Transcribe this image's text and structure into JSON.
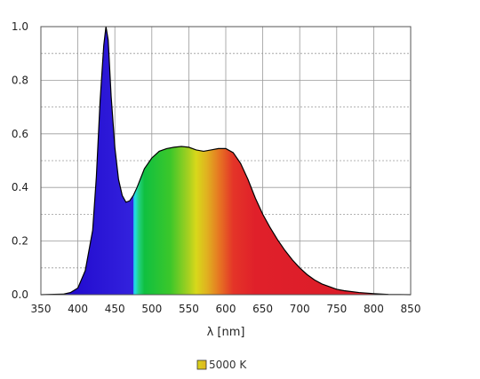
{
  "chart_data": {
    "type": "area",
    "xlabel": "λ [nm]",
    "ylabel": "",
    "xlim": [
      350,
      850
    ],
    "ylim": [
      0.0,
      1.0
    ],
    "x_ticks": [
      "350",
      "400",
      "450",
      "500",
      "550",
      "600",
      "650",
      "700",
      "750",
      "800",
      "850"
    ],
    "y_ticks": [
      "0.0",
      "0.2",
      "0.4",
      "0.6",
      "0.8",
      "1.0"
    ],
    "grid": true,
    "legend_position": "bottom-center",
    "series": [
      {
        "name": "5000 K",
        "x": [
          350,
          380,
          390,
          400,
          410,
          420,
          425,
          430,
          435,
          438,
          441,
          445,
          450,
          455,
          460,
          465,
          470,
          475,
          480,
          490,
          500,
          510,
          520,
          530,
          540,
          550,
          560,
          570,
          580,
          590,
          600,
          610,
          620,
          630,
          640,
          650,
          660,
          670,
          680,
          690,
          700,
          710,
          720,
          730,
          740,
          750,
          760,
          780,
          800,
          820,
          850
        ],
        "y": [
          0.0,
          0.002,
          0.008,
          0.025,
          0.09,
          0.24,
          0.44,
          0.72,
          0.93,
          1.0,
          0.95,
          0.74,
          0.55,
          0.43,
          0.37,
          0.345,
          0.35,
          0.37,
          0.4,
          0.47,
          0.51,
          0.535,
          0.545,
          0.55,
          0.553,
          0.55,
          0.54,
          0.535,
          0.54,
          0.545,
          0.545,
          0.53,
          0.49,
          0.43,
          0.36,
          0.3,
          0.25,
          0.205,
          0.165,
          0.13,
          0.1,
          0.075,
          0.055,
          0.04,
          0.03,
          0.02,
          0.015,
          0.008,
          0.004,
          0.001,
          0.0
        ]
      }
    ]
  }
}
